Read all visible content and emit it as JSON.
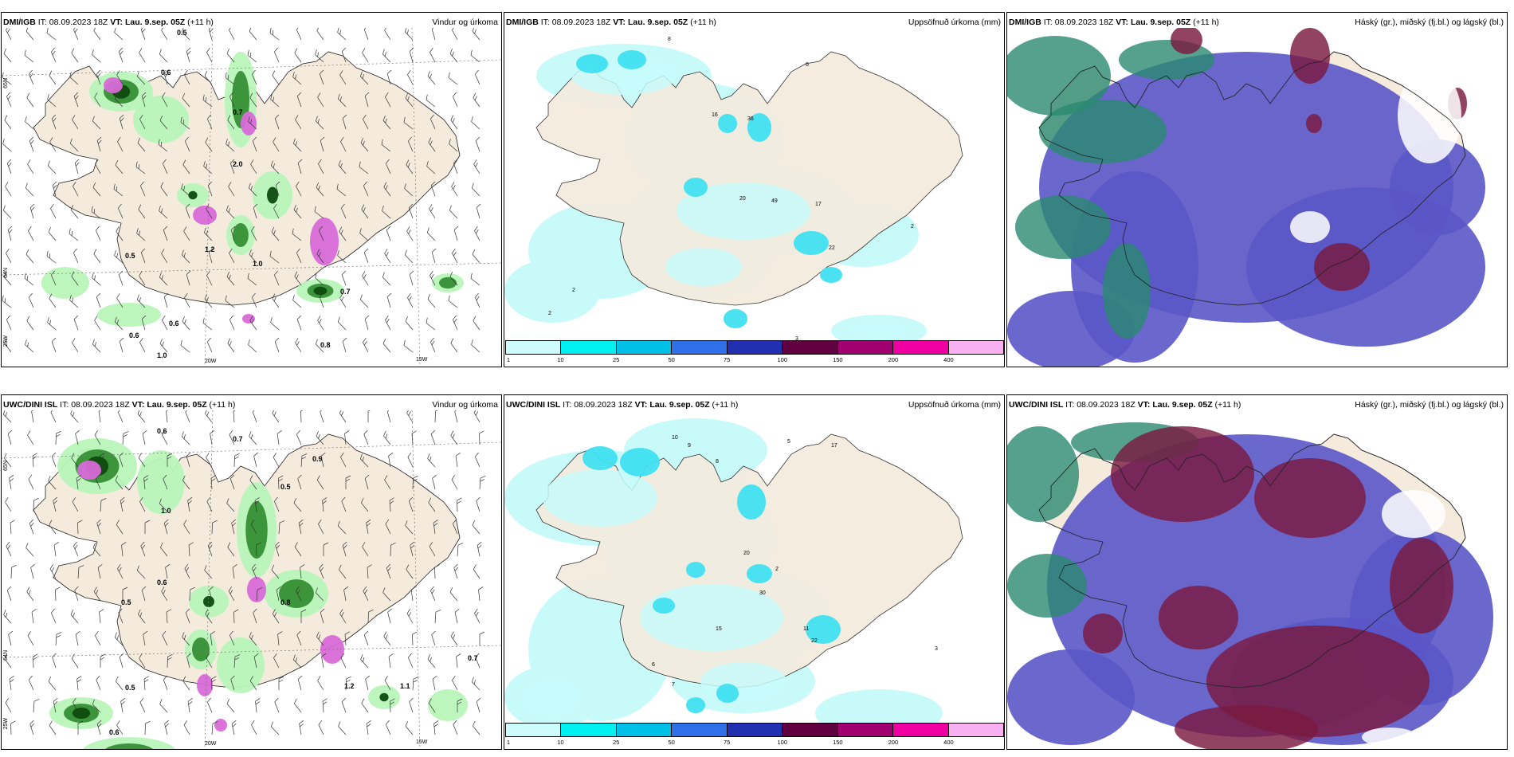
{
  "panels": [
    {
      "source": "DMI/IGB",
      "it_label": "IT:",
      "it": "08.09.2023 18Z",
      "vt_label": "VT:",
      "vt": "Lau. 9.sep. 05Z",
      "lead": "(+11 h)",
      "product": "Vindur og úrkoma",
      "kind": "wind"
    },
    {
      "source": "DMI/IGB",
      "it_label": "IT:",
      "it": "08.09.2023 18Z",
      "vt_label": "VT:",
      "vt": "Lau. 9.sep. 05Z",
      "lead": "(+11 h)",
      "product": "Uppsöfnuð úrkoma (mm)",
      "kind": "accum"
    },
    {
      "source": "DMI/IGB",
      "it_label": "IT:",
      "it": "08.09.2023 18Z",
      "vt_label": "VT:",
      "vt": "Lau. 9.sep. 05Z",
      "lead": "(+11 h)",
      "product": "Háský (gr.), miðský (fj.bl.) og lágský (bl.)",
      "kind": "cloud"
    },
    {
      "source": "UWC/DINI ISL",
      "it_label": "IT:",
      "it": "08.09.2023 18Z",
      "vt_label": "VT:",
      "vt": "Lau. 9.sep. 05Z",
      "lead": "(+11 h)",
      "product": "Vindur og úrkoma",
      "kind": "wind"
    },
    {
      "source": "UWC/DINI ISL",
      "it_label": "IT:",
      "it": "08.09.2023 18Z",
      "vt_label": "VT:",
      "vt": "Lau. 9.sep. 05Z",
      "lead": "(+11 h)",
      "product": "Uppsöfnuð úrkoma (mm)",
      "kind": "accum"
    },
    {
      "source": "UWC/DINI ISL",
      "it_label": "IT:",
      "it": "08.09.2023 18Z",
      "vt_label": "VT:",
      "vt": "Lau. 9.sep. 05Z",
      "lead": "(+11 h)",
      "product": "Háský (gr.), miðský (fj.bl.) og lágský (bl.)",
      "kind": "cloud"
    }
  ],
  "graticule": {
    "lat_labels": [
      "65N",
      "64N"
    ],
    "lon_labels": [
      "25W",
      "20W",
      "15W"
    ]
  },
  "wind_panel_values": {
    "top": [
      "0.5",
      "0.6",
      "0.7",
      "2.0",
      "1.2",
      "1.0",
      "0.5",
      "0.6",
      "0.6",
      "0.7",
      "0.8",
      "1.0"
    ],
    "bottom": [
      "0.6",
      "0.7",
      "0.9",
      "1.0",
      "0.5",
      "0.6",
      "0.5",
      "0.8",
      "1.2",
      "0.5",
      "0.7",
      "1.1",
      "0.6"
    ]
  },
  "accum_panel_values": {
    "top": [
      "8",
      "6",
      "16",
      "36",
      "20",
      "49",
      "17",
      "22",
      "2",
      "2",
      "2",
      "3"
    ],
    "bottom": [
      "10",
      "9",
      "8",
      "5",
      "17",
      "20",
      "30",
      "15",
      "22",
      "11",
      "2",
      "3",
      "6",
      "7"
    ]
  },
  "legend": {
    "ticks": [
      "1",
      "10",
      "25",
      "50",
      "75",
      "100",
      "150",
      "200",
      "400"
    ],
    "colors": [
      "#ccfcfc",
      "#00f0f0",
      "#00c0e8",
      "#3070e8",
      "#2030b0",
      "#600040",
      "#a00070",
      "#f000a0",
      "#f8b0f0"
    ]
  },
  "colors": {
    "land": "#f4ebdd",
    "rain_light": "#b8f5b8",
    "rain_mid": "#2e8b2e",
    "rain_heavy": "#0d4a0d",
    "rain_extreme": "#d86ad8",
    "accum_light": "#c8fafa",
    "accum_mid": "#40e0f0",
    "cloud_low": "#5a56c8",
    "cloud_high": "#7a1a40",
    "cloud_mid": "#2a8a70"
  }
}
